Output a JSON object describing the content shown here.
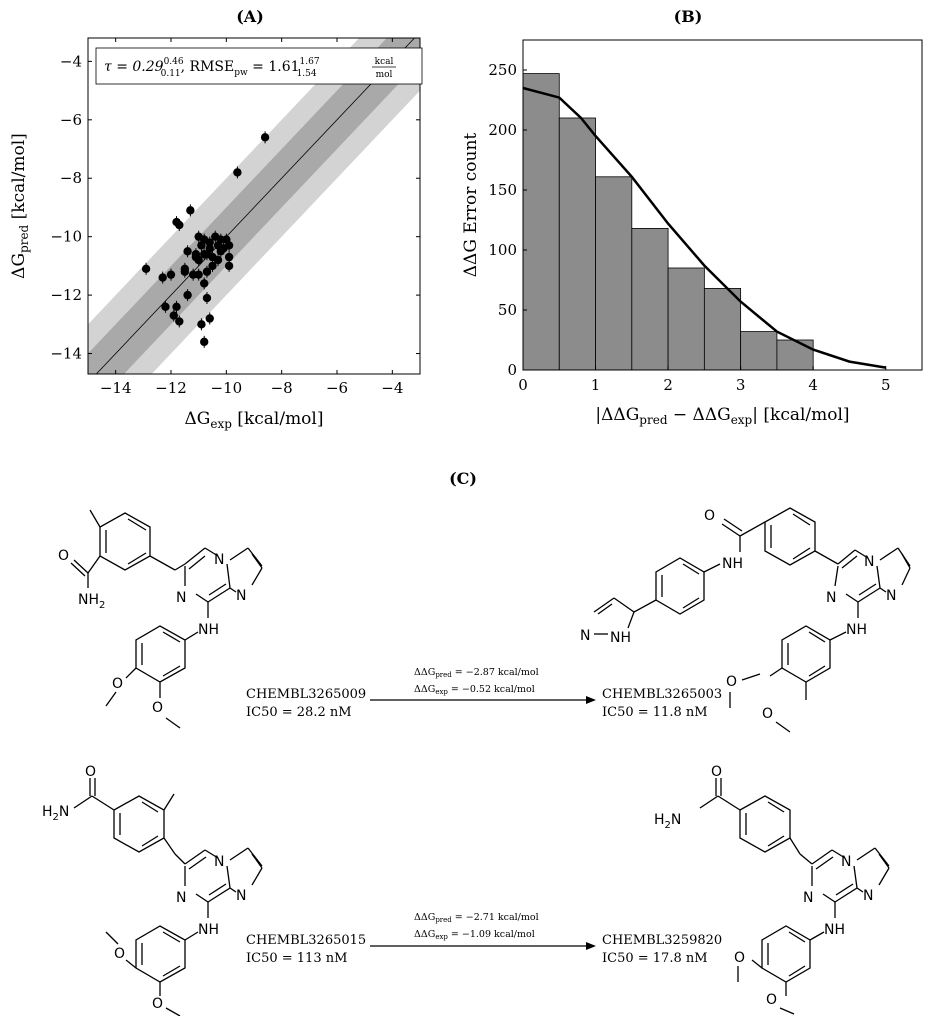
{
  "panels": {
    "A": {
      "label": "(A)"
    },
    "B": {
      "label": "(B)"
    },
    "C": {
      "label": "(C)"
    }
  },
  "chart_data": [
    {
      "type": "scatter",
      "panel": "A",
      "xlim": [
        -15,
        -3
      ],
      "ylim": [
        -14.7,
        -3.2
      ],
      "xticks": [
        -14,
        -12,
        -10,
        -8,
        -6,
        -4
      ],
      "yticks": [
        -14,
        -12,
        -10,
        -8,
        -6,
        -4
      ],
      "xlabel": "ΔG_exp [kcal/mol]",
      "ylabel": "ΔG_pred [kcal/mol]",
      "annotation": {
        "tau": "τ = 0.29",
        "tau_sup": "0.46",
        "tau_sub": "0.11",
        "rmse": ", RMSE",
        "rmse_sub": "pw",
        "rmse_eq": " = 1.61",
        "rmse_sup": "1.67",
        "rmse_low": "1.54",
        "unit_num": "kcal",
        "unit_den": "mol"
      },
      "bands": [
        {
          "halfwidth": 2
        },
        {
          "halfwidth": 1
        }
      ],
      "points": [
        [
          -8.6,
          -6.6
        ],
        [
          -9.6,
          -7.8
        ],
        [
          -11.3,
          -9.1
        ],
        [
          -11.7,
          -9.6
        ],
        [
          -11.8,
          -9.5
        ],
        [
          -12.9,
          -11.1
        ],
        [
          -12.3,
          -11.4
        ],
        [
          -12.0,
          -11.3
        ],
        [
          -11.5,
          -11.2
        ],
        [
          -11.4,
          -10.5
        ],
        [
          -11.1,
          -10.6
        ],
        [
          -11.0,
          -10.0
        ],
        [
          -10.9,
          -10.3
        ],
        [
          -10.8,
          -10.1
        ],
        [
          -10.7,
          -10.6
        ],
        [
          -10.6,
          -10.4
        ],
        [
          -10.5,
          -10.7
        ],
        [
          -10.4,
          -10.0
        ],
        [
          -10.3,
          -10.3
        ],
        [
          -10.2,
          -10.5
        ],
        [
          -10.1,
          -10.4
        ],
        [
          -10.0,
          -10.1
        ],
        [
          -9.9,
          -10.3
        ],
        [
          -9.9,
          -10.7
        ],
        [
          -9.9,
          -11.0
        ],
        [
          -10.3,
          -10.8
        ],
        [
          -10.5,
          -11.0
        ],
        [
          -10.7,
          -11.2
        ],
        [
          -11.0,
          -11.3
        ],
        [
          -11.2,
          -11.3
        ],
        [
          -11.5,
          -11.1
        ],
        [
          -11.0,
          -10.8
        ],
        [
          -10.8,
          -10.6
        ],
        [
          -10.6,
          -10.2
        ],
        [
          -11.4,
          -12.0
        ],
        [
          -10.8,
          -11.6
        ],
        [
          -10.7,
          -12.1
        ],
        [
          -11.8,
          -12.4
        ],
        [
          -12.2,
          -12.4
        ],
        [
          -11.9,
          -12.7
        ],
        [
          -11.7,
          -12.9
        ],
        [
          -10.6,
          -12.8
        ],
        [
          -10.9,
          -13.0
        ],
        [
          -10.8,
          -13.6
        ],
        [
          -11.1,
          -10.7
        ],
        [
          -10.2,
          -10.1
        ]
      ]
    },
    {
      "type": "bar",
      "panel": "B",
      "xlim": [
        0,
        5.5
      ],
      "ylim": [
        0,
        275
      ],
      "xticks": [
        0,
        1,
        2,
        3,
        4,
        5
      ],
      "yticks": [
        0,
        50,
        100,
        150,
        200,
        250
      ],
      "xlabel": "|ΔΔG_pred − ΔΔG_exp| [kcal/mol]",
      "ylabel": "ΔΔG Error count",
      "bin_edges": [
        0,
        0.5,
        1,
        1.5,
        2,
        2.5,
        3,
        3.5,
        4
      ],
      "values": [
        247,
        210,
        161,
        118,
        85,
        68,
        32,
        25
      ],
      "curve": [
        [
          0,
          235
        ],
        [
          0.5,
          227
        ],
        [
          0.8,
          210
        ],
        [
          1.0,
          195
        ],
        [
          1.5,
          161
        ],
        [
          2.0,
          122
        ],
        [
          2.5,
          87
        ],
        [
          3.0,
          57
        ],
        [
          3.5,
          32
        ],
        [
          4.0,
          17
        ],
        [
          4.5,
          7
        ],
        [
          5.0,
          2
        ]
      ]
    }
  ],
  "panel_c": {
    "transform1": {
      "left_id": "CHEMBL3265009",
      "left_ic50": "IC50 = 28.2 nM",
      "right_id": "CHEMBL3265003",
      "right_ic50": "IC50 = 11.8 nM",
      "pred_label": "ΔΔG",
      "pred_sub": "pred",
      "pred_val": " = −2.87 kcal/mol",
      "exp_label": "ΔΔG",
      "exp_sub": "exp",
      "exp_val": "  = −0.52 kcal/mol"
    },
    "transform2": {
      "left_id": "CHEMBL3265015",
      "left_ic50": "IC50 = 113 nM",
      "right_id": "CHEMBL3259820",
      "right_ic50": "IC50 = 17.8 nM",
      "pred_label": "ΔΔG",
      "pred_sub": "pred",
      "pred_val": " = −2.71 kcal/mol",
      "exp_label": "ΔΔG",
      "exp_sub": "exp",
      "exp_val": "  = −1.09 kcal/mol"
    },
    "atoms": {
      "N": "N",
      "NH": "NH",
      "NH2": "NH",
      "H2N": "H",
      "O": "O",
      "two": "2",
      "H": "N"
    }
  }
}
